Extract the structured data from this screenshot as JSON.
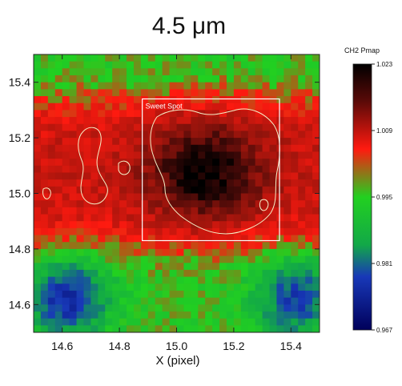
{
  "chart_data": {
    "type": "heatmap",
    "title": "4.5 μm",
    "xlabel": "X (pixel)",
    "ylabel": "",
    "xlim": [
      14.5,
      15.5
    ],
    "ylim": [
      14.5,
      15.5
    ],
    "x_ticks": [
      14.6,
      14.8,
      15.0,
      15.2,
      15.4
    ],
    "y_ticks": [
      14.6,
      14.8,
      15.0,
      15.2,
      15.4
    ],
    "x_tick_labels": [
      "14.6",
      "14.8",
      "15.0",
      "15.2",
      "15.4"
    ],
    "y_tick_labels": [
      "14.6",
      "14.8",
      "15.0",
      "15.2",
      "15.4"
    ],
    "colorbar": {
      "label": "CH2 Pmap",
      "min": 0.967,
      "max": 1.023,
      "ticks": [
        1.023,
        1.009,
        0.995,
        0.981,
        0.967
      ],
      "tick_labels": [
        "1.023",
        "1.009",
        "0.995",
        "0.981",
        "0.967"
      ]
    },
    "annotation": {
      "label": "Sweet Spot",
      "x_range": [
        14.88,
        15.36
      ],
      "y_range": [
        14.83,
        15.34
      ]
    },
    "field_features": {
      "peak_center": [
        15.1,
        15.08
      ],
      "peak_value": 1.023,
      "red_band_y": [
        14.8,
        15.35
      ],
      "low_regions": [
        {
          "center": [
            14.62,
            14.62
          ],
          "value": 0.975
        },
        {
          "center": [
            15.42,
            14.62
          ],
          "value": 0.978
        }
      ],
      "background_value": 0.995
    },
    "grid": false,
    "legend": "colorbar-right"
  }
}
